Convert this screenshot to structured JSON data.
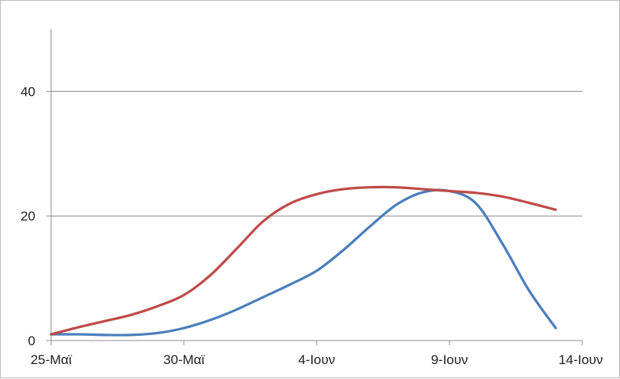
{
  "chart_data": {
    "type": "line",
    "title": "",
    "xlabel": "",
    "ylabel": "",
    "x_tick_labels": [
      "25-Μαϊ",
      "30-Μαϊ",
      "4-Ιουν",
      "9-Ιουν",
      "14-Ιουν"
    ],
    "x_tick_positions": [
      0,
      5,
      10,
      15,
      20
    ],
    "y_tick_labels": [
      "0",
      "20",
      "40"
    ],
    "y_tick_values": [
      0,
      20,
      40
    ],
    "xlim": [
      0,
      20
    ],
    "ylim": [
      0,
      50
    ],
    "grid": true,
    "legend": "none",
    "series": [
      {
        "color": "#4a7ebb",
        "x": [
          0,
          1,
          2,
          3,
          4,
          5,
          6,
          7,
          8,
          9,
          10,
          11,
          12,
          13,
          14,
          15,
          16,
          17,
          18,
          19
        ],
        "values": [
          1,
          1,
          0.9,
          0.9,
          1.2,
          2,
          3.3,
          5,
          7,
          9,
          11.2,
          14.5,
          18.3,
          21.8,
          23.8,
          24,
          22,
          15.5,
          8,
          2
        ]
      },
      {
        "color": "#be4b48",
        "x": [
          0,
          1,
          2,
          3,
          4,
          5,
          6,
          7,
          8,
          9,
          10,
          11,
          12,
          13,
          14,
          15,
          16,
          17,
          18,
          19
        ],
        "values": [
          1,
          2.1,
          3.1,
          4.1,
          5.5,
          7.3,
          10.5,
          14.8,
          19.2,
          22,
          23.5,
          24.3,
          24.6,
          24.6,
          24.3,
          24,
          23.7,
          23.1,
          22.1,
          21
        ]
      }
    ]
  }
}
